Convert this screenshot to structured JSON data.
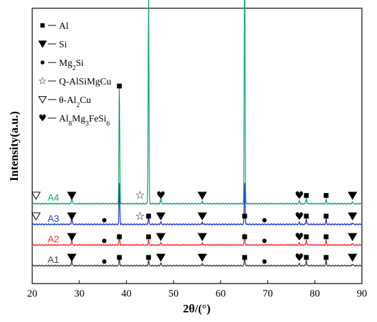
{
  "chart_data": {
    "type": "line",
    "xlabel": "2θ/(°)",
    "ylabel": "Intensity(a.u.)",
    "xlim": [
      20,
      90
    ],
    "xticks": [
      20,
      30,
      40,
      50,
      60,
      70,
      80,
      90
    ],
    "legend_placement": "top-left",
    "legend": [
      {
        "symbol": "square",
        "label": "Al"
      },
      {
        "symbol": "triangle-down",
        "label": "Si"
      },
      {
        "symbol": "circle",
        "label": "Mg2Si",
        "sub": "2",
        "parts": [
          "Mg",
          "2",
          "Si"
        ]
      },
      {
        "symbol": "star-open",
        "label": "Q-AlSiMgCu"
      },
      {
        "symbol": "triangle-down-open",
        "label": "θ-Al2Cu",
        "parts": [
          "θ-Al",
          "2",
          "Cu"
        ]
      },
      {
        "symbol": "heart",
        "label": "Al8Mg3FeSi6",
        "parts": [
          "Al",
          "8",
          "Mg",
          "3",
          "FeSi",
          "6"
        ]
      }
    ],
    "series": [
      {
        "name": "A1",
        "color": "#444444",
        "baseline": 0.065,
        "peaks": [
          {
            "x": 28.4,
            "h": 0.02
          },
          {
            "x": 38.5,
            "h": 0.03
          },
          {
            "x": 44.7,
            "h": 0.02
          },
          {
            "x": 47.3,
            "h": 0.01
          },
          {
            "x": 56.1,
            "h": 0.008
          },
          {
            "x": 65.1,
            "h": 0.03
          },
          {
            "x": 76.7,
            "h": 0.008
          },
          {
            "x": 78.2,
            "h": 0.02
          },
          {
            "x": 82.4,
            "h": 0.02
          },
          {
            "x": 88.0,
            "h": 0.006
          }
        ]
      },
      {
        "name": "A2",
        "color": "#ee3333",
        "baseline": 0.14,
        "peaks": [
          {
            "x": 28.4,
            "h": 0.02
          },
          {
            "x": 38.5,
            "h": 0.04
          },
          {
            "x": 44.7,
            "h": 0.02
          },
          {
            "x": 47.3,
            "h": 0.01
          },
          {
            "x": 56.1,
            "h": 0.008
          },
          {
            "x": 65.1,
            "h": 0.04
          },
          {
            "x": 76.7,
            "h": 0.008
          },
          {
            "x": 78.2,
            "h": 0.02
          },
          {
            "x": 82.4,
            "h": 0.02
          },
          {
            "x": 88.0,
            "h": 0.006
          }
        ]
      },
      {
        "name": "A3",
        "color": "#1f3cd6",
        "baseline": 0.215,
        "peaks": [
          {
            "x": 28.4,
            "h": 0.03
          },
          {
            "x": 38.5,
            "h": 0.15
          },
          {
            "x": 44.7,
            "h": 0.03
          },
          {
            "x": 47.3,
            "h": 0.01
          },
          {
            "x": 56.1,
            "h": 0.008
          },
          {
            "x": 65.1,
            "h": 0.15
          },
          {
            "x": 76.7,
            "h": 0.008
          },
          {
            "x": 78.2,
            "h": 0.02
          },
          {
            "x": 82.4,
            "h": 0.02
          },
          {
            "x": 88.0,
            "h": 0.006
          }
        ]
      },
      {
        "name": "A4",
        "color": "#1aaa66",
        "baseline": 0.29,
        "peaks": [
          {
            "x": 28.4,
            "h": 0.03
          },
          {
            "x": 38.5,
            "h": 0.42
          },
          {
            "x": 44.7,
            "h": 0.75
          },
          {
            "x": 47.3,
            "h": 0.02
          },
          {
            "x": 56.1,
            "h": 0.01
          },
          {
            "x": 65.1,
            "h": 0.92
          },
          {
            "x": 76.7,
            "h": 0.01
          },
          {
            "x": 78.2,
            "h": 0.02
          },
          {
            "x": 82.4,
            "h": 0.015
          },
          {
            "x": 88.0,
            "h": 0.008
          }
        ]
      }
    ],
    "peak_markers": [
      {
        "series": "A4",
        "markers": [
          {
            "x": 20.8,
            "symbol": "triangle-down-open"
          },
          {
            "x": 28.4,
            "symbol": "triangle-down"
          },
          {
            "x": 38.5,
            "symbol": "square"
          },
          {
            "x": 42.9,
            "symbol": "star-open"
          },
          {
            "x": 44.7,
            "symbol": "square"
          },
          {
            "x": 47.3,
            "symbol": "heart"
          },
          {
            "x": 56.1,
            "symbol": "triangle-down"
          },
          {
            "x": 65.1,
            "symbol": "square"
          },
          {
            "x": 76.7,
            "symbol": "heart"
          },
          {
            "x": 78.2,
            "symbol": "square"
          },
          {
            "x": 82.4,
            "symbol": "square"
          },
          {
            "x": 88.0,
            "symbol": "triangle-down"
          }
        ]
      },
      {
        "series": "A3",
        "markers": [
          {
            "x": 20.8,
            "symbol": "triangle-down-open"
          },
          {
            "x": 28.4,
            "symbol": "triangle-down"
          },
          {
            "x": 35.3,
            "symbol": "circle"
          },
          {
            "x": 42.9,
            "symbol": "star-open"
          },
          {
            "x": 44.7,
            "symbol": "square"
          },
          {
            "x": 47.3,
            "symbol": "triangle-down"
          },
          {
            "x": 56.1,
            "symbol": "triangle-down"
          },
          {
            "x": 65.1,
            "symbol": "square"
          },
          {
            "x": 69.3,
            "symbol": "circle"
          },
          {
            "x": 76.7,
            "symbol": "heart"
          },
          {
            "x": 78.2,
            "symbol": "square"
          },
          {
            "x": 82.4,
            "symbol": "square"
          },
          {
            "x": 88.0,
            "symbol": "triangle-down"
          }
        ]
      },
      {
        "series": "A2",
        "markers": [
          {
            "x": 28.4,
            "symbol": "triangle-down"
          },
          {
            "x": 35.3,
            "symbol": "circle"
          },
          {
            "x": 38.5,
            "symbol": "square"
          },
          {
            "x": 44.7,
            "symbol": "square"
          },
          {
            "x": 47.3,
            "symbol": "triangle-down"
          },
          {
            "x": 56.1,
            "symbol": "triangle-down"
          },
          {
            "x": 65.1,
            "symbol": "square"
          },
          {
            "x": 69.3,
            "symbol": "circle"
          },
          {
            "x": 76.7,
            "symbol": "heart"
          },
          {
            "x": 78.2,
            "symbol": "square"
          },
          {
            "x": 82.4,
            "symbol": "square"
          },
          {
            "x": 88.0,
            "symbol": "triangle-down"
          }
        ]
      },
      {
        "series": "A1",
        "markers": [
          {
            "x": 28.4,
            "symbol": "triangle-down"
          },
          {
            "x": 35.3,
            "symbol": "circle"
          },
          {
            "x": 38.5,
            "symbol": "square"
          },
          {
            "x": 44.7,
            "symbol": "square"
          },
          {
            "x": 47.3,
            "symbol": "triangle-down"
          },
          {
            "x": 56.1,
            "symbol": "triangle-down"
          },
          {
            "x": 65.1,
            "symbol": "square"
          },
          {
            "x": 69.3,
            "symbol": "circle"
          },
          {
            "x": 76.7,
            "symbol": "heart"
          },
          {
            "x": 78.2,
            "symbol": "square"
          },
          {
            "x": 82.4,
            "symbol": "square"
          },
          {
            "x": 88.0,
            "symbol": "triangle-down"
          }
        ]
      }
    ]
  }
}
